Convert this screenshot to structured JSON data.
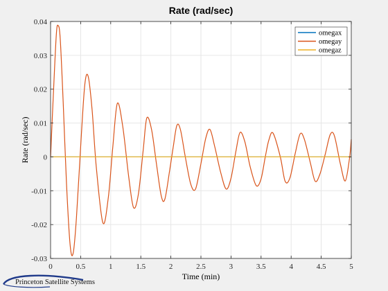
{
  "chart_data": {
    "type": "line",
    "title": "Rate (rad/sec)",
    "xlabel": "Time (min)",
    "ylabel": "Rate (rad/sec)",
    "xlim": [
      0,
      5
    ],
    "ylim": [
      -0.03,
      0.04
    ],
    "xticks": [
      "0",
      "0.5",
      "1",
      "1.5",
      "2",
      "2.5",
      "3",
      "3.5",
      "4",
      "4.5",
      "5"
    ],
    "yticks": [
      "-0.03",
      "-0.02",
      "-0.01",
      "0",
      "0.01",
      "0.02",
      "0.03",
      "0.04"
    ],
    "grid": true,
    "legend_position": "top-right",
    "series": [
      {
        "name": "omegax",
        "color": "#0072BD",
        "x": [
          0,
          5
        ],
        "y": [
          0,
          0
        ]
      },
      {
        "name": "omegay",
        "color": "#D95319",
        "x": [
          0,
          0.045,
          0.095,
          0.125,
          0.16,
          0.21,
          0.265,
          0.325,
          0.375,
          0.43,
          0.51,
          0.57,
          0.625,
          0.69,
          0.76,
          0.87,
          0.96,
          1.035,
          1.11,
          1.2,
          1.3,
          1.38,
          1.46,
          1.54,
          1.6,
          1.68,
          1.76,
          1.84,
          1.9,
          1.98,
          2.04,
          2.1,
          2.16,
          2.24,
          2.33,
          2.41,
          2.5,
          2.58,
          2.65,
          2.73,
          2.83,
          2.92,
          3.0,
          3.08,
          3.15,
          3.23,
          3.32,
          3.42,
          3.5,
          3.57,
          3.63,
          3.7,
          3.82,
          3.9,
          3.98,
          4.07,
          4.15,
          4.22,
          4.32,
          4.4,
          4.48,
          4.57,
          4.65,
          4.72,
          4.82,
          4.9,
          4.97,
          5.0
        ],
        "y": [
          0,
          0.018,
          0.036,
          0.0388,
          0.035,
          0.016,
          -0.008,
          -0.026,
          -0.0285,
          -0.018,
          0.006,
          0.0215,
          0.0238,
          0.014,
          -0.003,
          -0.0195,
          -0.012,
          0.003,
          0.0158,
          0.009,
          -0.006,
          -0.015,
          -0.011,
          0.002,
          0.0115,
          0.008,
          -0.002,
          -0.0115,
          -0.0125,
          -0.004,
          0.003,
          0.0093,
          0.008,
          0.0,
          -0.008,
          -0.0095,
          -0.002,
          0.0055,
          0.0081,
          0.003,
          -0.0047,
          -0.0095,
          -0.0063,
          0.0015,
          0.0072,
          0.0045,
          -0.003,
          -0.0085,
          -0.0065,
          0.0,
          0.005,
          0.007,
          0.0,
          -0.0072,
          -0.0062,
          0.0012,
          0.0068,
          0.0052,
          -0.0018,
          -0.0072,
          -0.005,
          0.001,
          0.0066,
          0.0062,
          -0.0022,
          -0.0071,
          -0.0005,
          0.0052
        ]
      },
      {
        "name": "omegaz",
        "color": "#EDB120",
        "x": [
          0,
          5
        ],
        "y": [
          0,
          0
        ]
      }
    ]
  },
  "logo": {
    "text": "Princeton Satellite Systems"
  }
}
